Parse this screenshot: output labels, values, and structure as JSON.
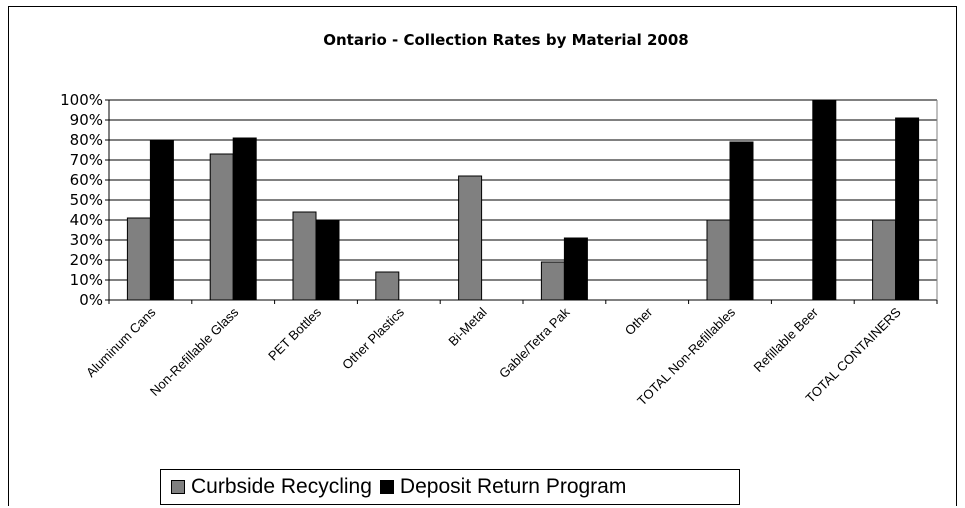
{
  "chart_data": {
    "type": "bar",
    "title": "Ontario  - Collection Rates by Material 2008",
    "xlabel": "",
    "ylabel": "",
    "ylim": [
      0,
      100
    ],
    "y_ticks": [
      "0%",
      "10%",
      "20%",
      "30%",
      "40%",
      "50%",
      "60%",
      "70%",
      "80%",
      "90%",
      "100%"
    ],
    "categories": [
      "Aluminum Cans",
      "Non-Refillable Glass",
      "PET Bottles",
      "Other Plastics",
      "Bi-Metal",
      "Gable/Tetra Pak",
      "Other",
      "TOTAL Non-Refillables",
      "Refillable Beer",
      "TOTAL CONTAINERS"
    ],
    "series": [
      {
        "name": "Curbside Recycling",
        "color": "#808080",
        "values": [
          41,
          73,
          44,
          14,
          62,
          19,
          0,
          40,
          0,
          40
        ]
      },
      {
        "name": "Deposit Return Program",
        "color": "#000000",
        "values": [
          80,
          81,
          40,
          0,
          0,
          31,
          0,
          79,
          100,
          91
        ]
      }
    ],
    "grid": true,
    "legend_position": "bottom"
  }
}
